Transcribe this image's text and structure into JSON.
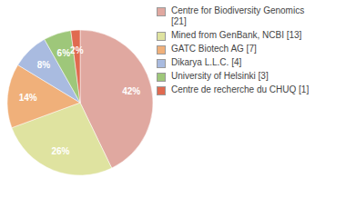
{
  "chart_data": {
    "type": "pie",
    "categories": [
      "Centre for Biodiversity Genomics [21]",
      "Mined from GenBank, NCBI [13]",
      "GATC Biotech AG [7]",
      "Dikarya L.L.C. [4]",
      "University of Helsinki [3]",
      "Centre de recherche du CHUQ [1]"
    ],
    "values": [
      42,
      26,
      14,
      8,
      6,
      2
    ],
    "value_labels": [
      "42%",
      "26%",
      "14%",
      "8%",
      "6%",
      "2%"
    ],
    "data_labels": true,
    "colors": [
      "#e0a8a0",
      "#dfe3a0",
      "#f0b07a",
      "#a9bbe0",
      "#9ec77a",
      "#e06a50"
    ],
    "legend": "right"
  }
}
